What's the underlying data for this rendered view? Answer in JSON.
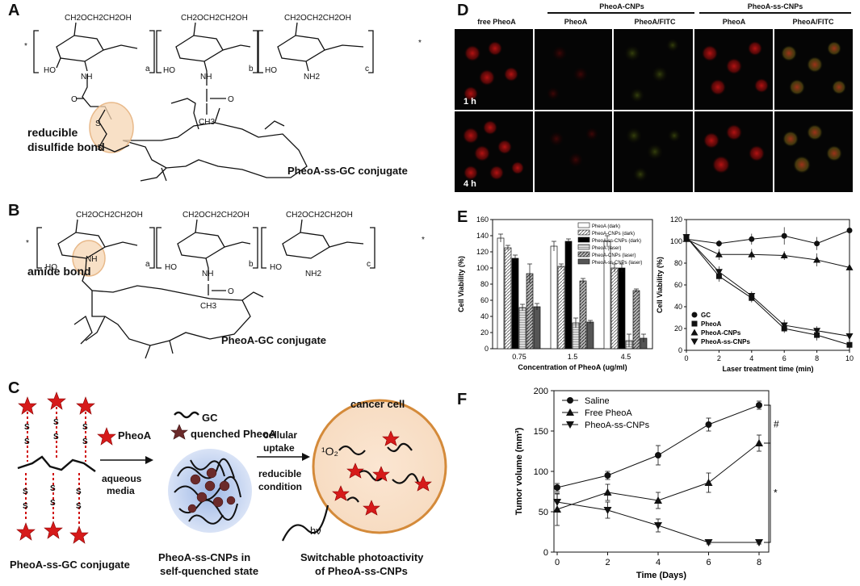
{
  "panels": {
    "A": {
      "letter": "A",
      "conjugate_label": "PheoA-ss-GC conjugate",
      "bond_label_1": "reducible",
      "bond_label_2": "disulfide bond",
      "units": {
        "sub1": "CH2OCH2CH2OH",
        "a": "a",
        "b": "b",
        "c": "c",
        "nh": "NH",
        "nh2": "NH2",
        "ho": "HO",
        "ch3": "CH3",
        "o": "O",
        "s": "S",
        "n": "N",
        "star": "*"
      }
    },
    "B": {
      "letter": "B",
      "conjugate_label": "PheoA-GC conjugate",
      "bond_label": "amide bond"
    },
    "C": {
      "letter": "C",
      "legend_gc": "GC",
      "legend_quenched": "quenched PheoA",
      "pheoa": "PheoA",
      "aqueous_1": "aqueous",
      "aqueous_2": "media",
      "cellular_1": "cellular",
      "cellular_2": "uptake",
      "reducible_1": "reducible",
      "reducible_2": "condition",
      "cancer_cell": "cancer cell",
      "singlet_oxygen": "¹O₂",
      "hv": "hν",
      "caption_1": "PheoA-ss-GC conjugate",
      "caption_2a": "PheoA-ss-CNPs in",
      "caption_2b": "self-quenched state",
      "caption_3a": "Switchable photoactivity",
      "caption_3b": "of PheoA-ss-CNPs",
      "s": "S"
    },
    "D": {
      "letter": "D",
      "group_1": "PheoA-CNPs",
      "group_2": "PheoA-ss-CNPs",
      "columns": [
        "free PheoA",
        "PheoA",
        "PheoA/FITC",
        "PheoA",
        "PheoA/FITC"
      ],
      "rows": [
        "1 h",
        "4 h"
      ]
    },
    "E": {
      "letter": "E"
    },
    "F": {
      "letter": "F"
    }
  },
  "chart_data": [
    {
      "type": "bar",
      "panel": "E-left",
      "categories": [
        "0.75",
        "1.5",
        "4.5"
      ],
      "xlabel": "Concentration of PheoA (ug/ml)",
      "ylabel": "Cell Viability (%)",
      "ylim": [
        0,
        160
      ],
      "yticks": [
        0,
        20,
        40,
        60,
        80,
        100,
        120,
        140,
        160
      ],
      "legend_position": "top-right",
      "series": [
        {
          "name": "PheoA (dark)",
          "values": [
            137,
            127,
            133
          ],
          "errors": [
            5,
            6,
            7
          ],
          "fill": "#ffffff",
          "pattern": "none"
        },
        {
          "name": "PheoA-CNPs (dark)",
          "values": [
            125,
            102,
            100
          ],
          "errors": [
            3,
            3,
            5
          ],
          "fill": "#ffffff",
          "pattern": "hatch-light"
        },
        {
          "name": "PheoA-ss-CNPs (dark)",
          "values": [
            112,
            133,
            100
          ],
          "errors": [
            4,
            3,
            5
          ],
          "fill": "#000000",
          "pattern": "none"
        },
        {
          "name": "PheoA (laser)",
          "values": [
            51,
            32,
            10
          ],
          "errors": [
            4,
            6,
            8
          ],
          "fill": "#cccccc",
          "pattern": "lines"
        },
        {
          "name": "PheoA-CNPs (laser)",
          "values": [
            93,
            84,
            72
          ],
          "errors": [
            12,
            3,
            2
          ],
          "fill": "#888888",
          "pattern": "hatch"
        },
        {
          "name": "PheoA-ss-CNPs (laser)",
          "values": [
            52,
            33,
            13
          ],
          "errors": [
            4,
            2,
            5
          ],
          "fill": "#555555",
          "pattern": "none"
        }
      ]
    },
    {
      "type": "line",
      "panel": "E-right",
      "x": [
        0,
        2,
        4,
        6,
        8,
        10
      ],
      "xlabel": "Laser treatment time (min)",
      "ylabel": "Cell Viability (%)",
      "xlim": [
        0,
        10
      ],
      "ylim": [
        0,
        120
      ],
      "xticks": [
        0,
        2,
        4,
        6,
        8,
        10
      ],
      "yticks": [
        0,
        20,
        40,
        60,
        80,
        100,
        120
      ],
      "legend_position": "bottom-left",
      "series": [
        {
          "name": "GC",
          "marker": "circle",
          "values": [
            102,
            98,
            102,
            105,
            98,
            110
          ],
          "errors": [
            5,
            3,
            5,
            8,
            6,
            8
          ]
        },
        {
          "name": "PheoA",
          "marker": "square",
          "values": [
            104,
            68,
            48,
            20,
            14,
            5
          ],
          "errors": [
            4,
            5,
            4,
            4,
            5,
            3
          ]
        },
        {
          "name": "PheoA-CNPs",
          "marker": "triangle-up",
          "values": [
            102,
            88,
            88,
            87,
            83,
            76
          ],
          "errors": [
            4,
            5,
            5,
            4,
            6,
            6
          ]
        },
        {
          "name": "PheoA-ss-CNPs",
          "marker": "triangle-down",
          "values": [
            104,
            72,
            50,
            23,
            18,
            13
          ],
          "errors": [
            4,
            5,
            4,
            5,
            4,
            4
          ]
        }
      ]
    },
    {
      "type": "line",
      "panel": "F",
      "x": [
        0,
        2,
        4,
        6,
        8
      ],
      "xlabel": "Time (Days)",
      "ylabel": "Tumor volume (mm³)",
      "xlim": [
        0,
        8
      ],
      "ylim": [
        0,
        200
      ],
      "xticks": [
        0,
        2,
        4,
        6,
        8
      ],
      "yticks": [
        0,
        50,
        100,
        150,
        200
      ],
      "legend_position": "top-left",
      "series": [
        {
          "name": "Saline",
          "marker": "circle",
          "values": [
            80,
            95,
            120,
            158,
            182
          ],
          "errors": [
            5,
            5,
            12,
            8,
            5
          ]
        },
        {
          "name": "Free PheoA",
          "marker": "triangle-up",
          "values": [
            53,
            74,
            64,
            86,
            135
          ],
          "errors": [
            20,
            10,
            10,
            12,
            10
          ]
        },
        {
          "name": "PheoA-ss-CNPs",
          "marker": "triangle-down",
          "values": [
            62,
            52,
            33,
            12,
            12
          ],
          "errors": [
            10,
            10,
            8,
            2,
            2
          ]
        }
      ],
      "significance": [
        {
          "between": [
            "Saline",
            "Free PheoA"
          ],
          "label": "#"
        },
        {
          "between": [
            "Free PheoA",
            "PheoA-ss-CNPs"
          ],
          "label": "*"
        }
      ]
    }
  ]
}
